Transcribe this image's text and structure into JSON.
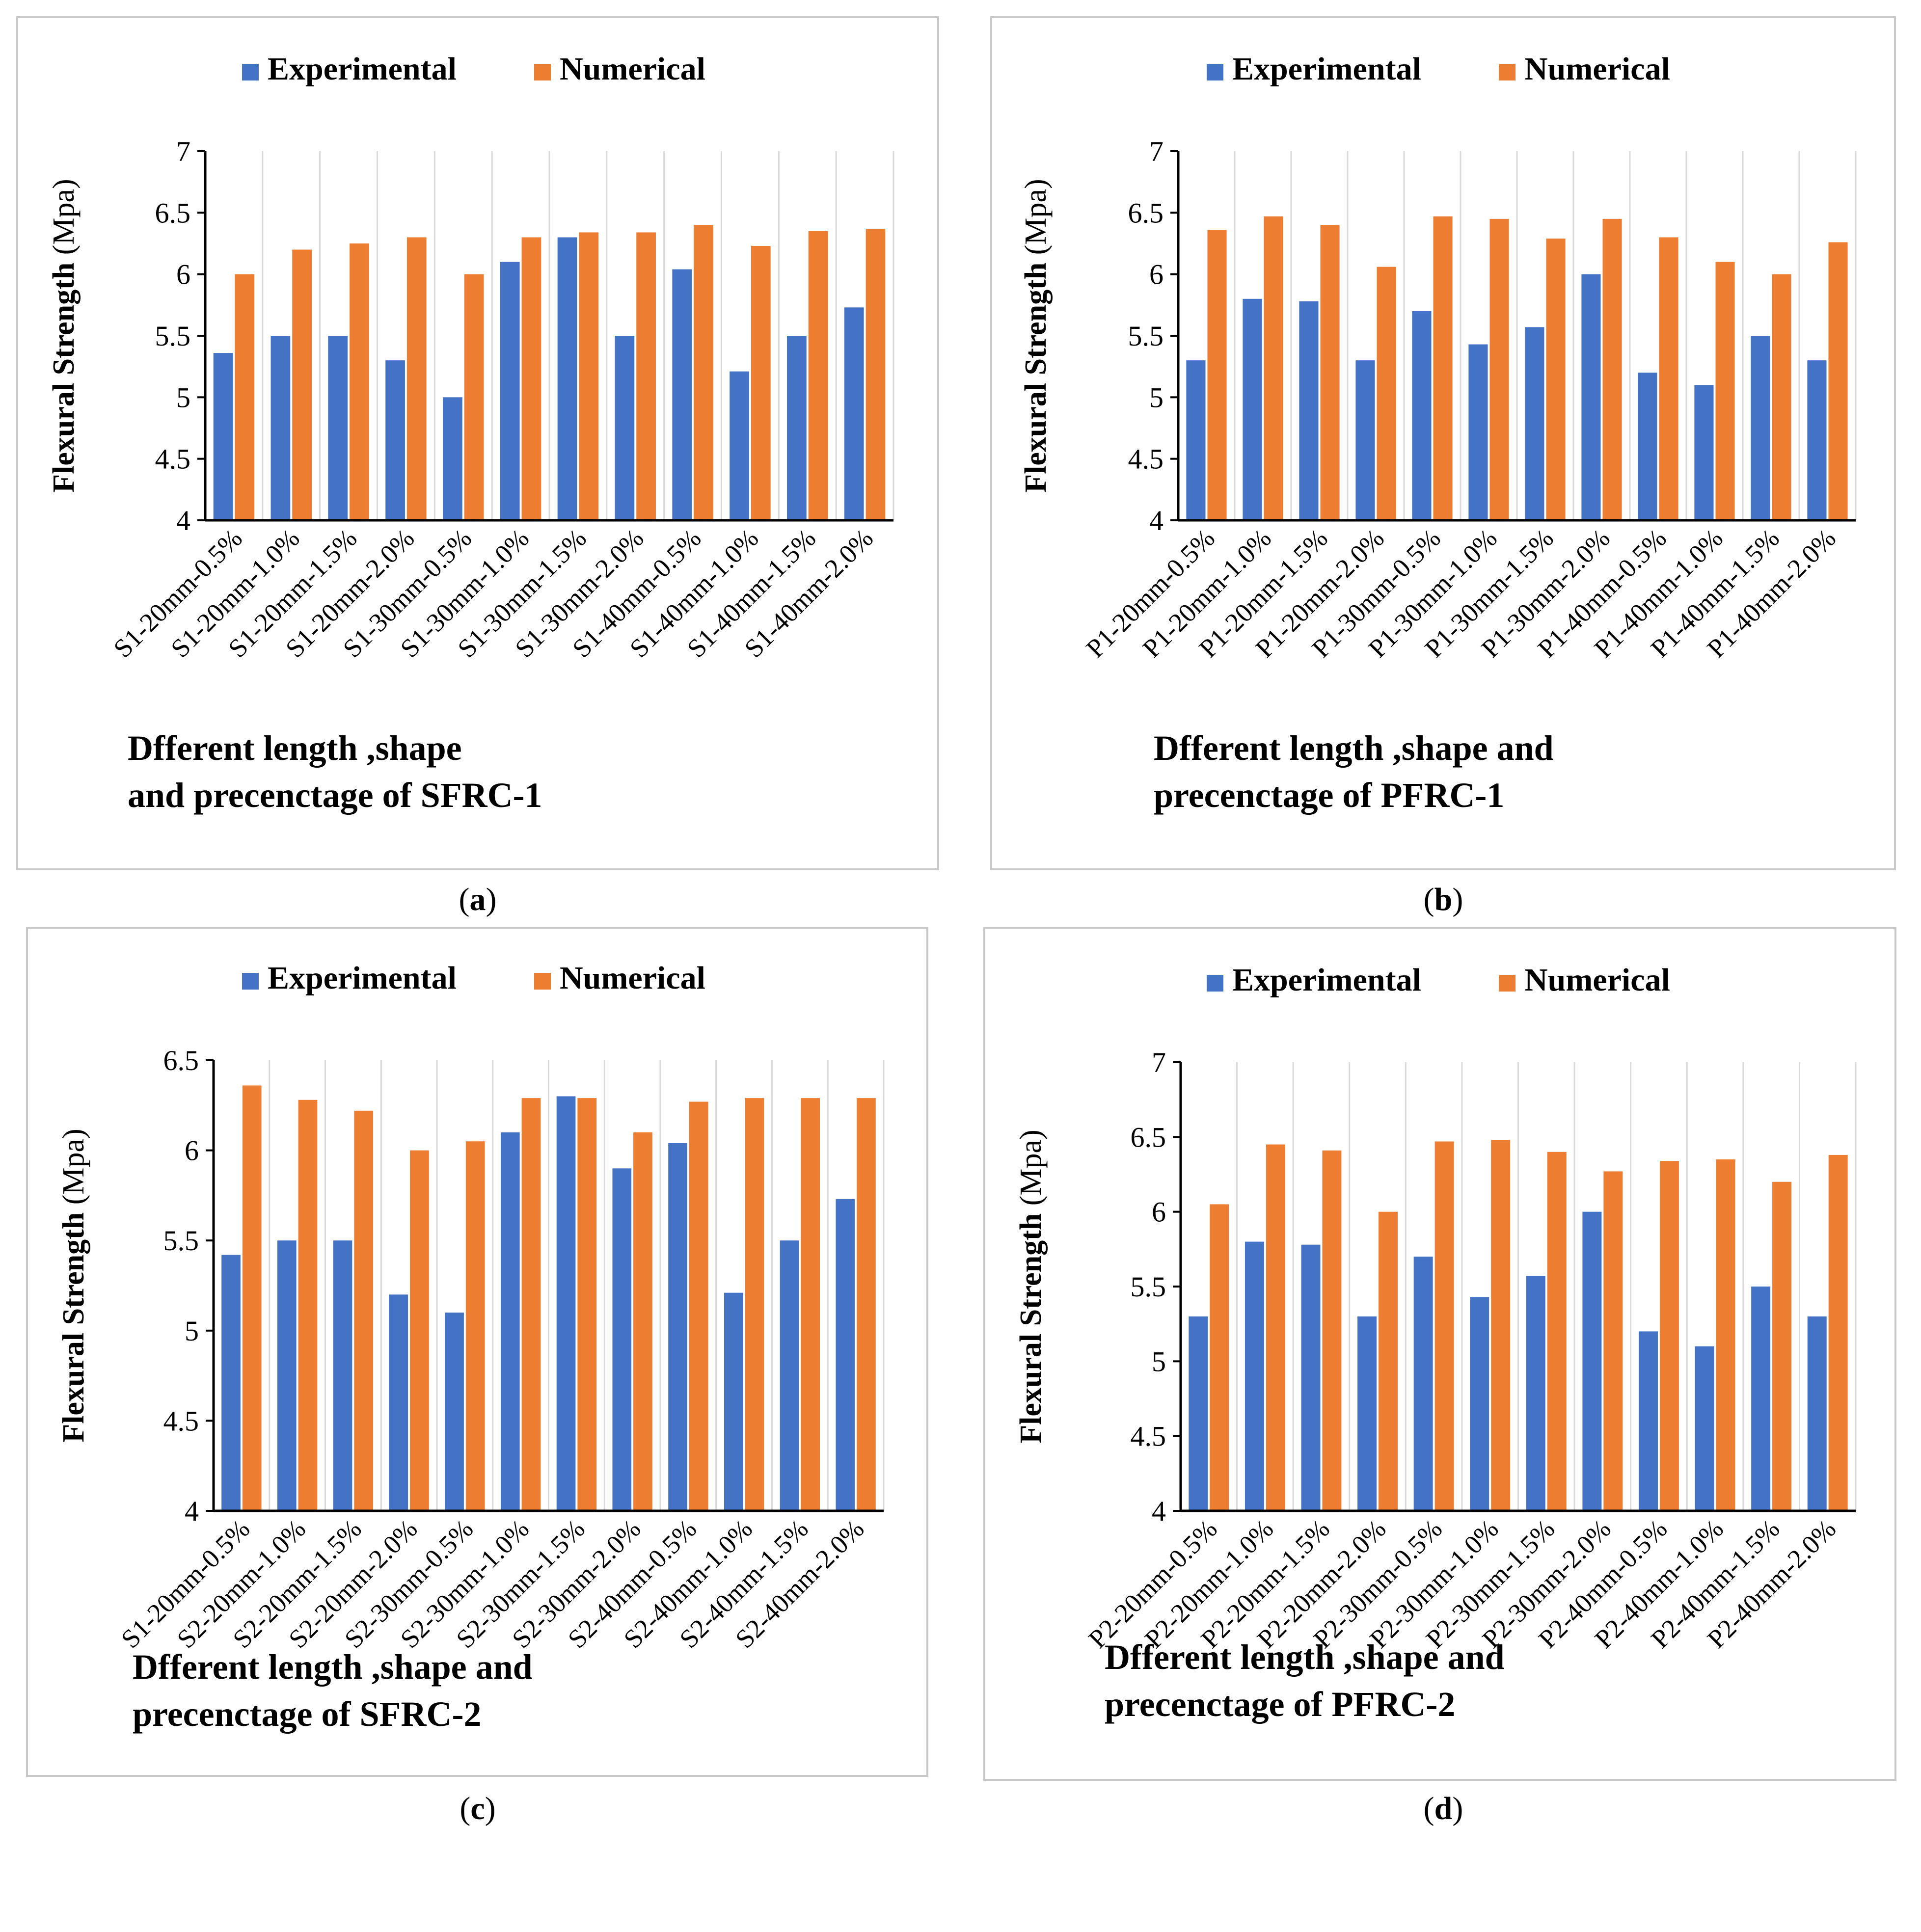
{
  "legend": {
    "experimental": "Experimental",
    "numerical": "Numerical"
  },
  "colors": {
    "experimental": "#4472C4",
    "numerical": "#ED7D31",
    "grid": "#D9D9D9",
    "axis": "#000000"
  },
  "chart_data": [
    {
      "panel": "a",
      "caption_open": "(",
      "caption_letter": "a",
      "caption_close": ")",
      "type": "bar",
      "ylabel_bold": "Flexural Strength",
      "ylabel_unit": "(Mpa)",
      "xlabel_lines": [
        "Dfferent length ,shape",
        "and precenctage of SFRC-1"
      ],
      "ylim": [
        4,
        7
      ],
      "yticks": [
        "4",
        "4.5",
        "5",
        "5.5",
        "6",
        "6.5",
        "7"
      ],
      "categories": [
        "S1-20mm-0.5%",
        "S1-20mm-1.0%",
        "S1-20mm-1.5%",
        "S1-20mm-2.0%",
        "S1-30mm-0.5%",
        "S1-30mm-1.0%",
        "S1-30mm-1.5%",
        "S1-30mm-2.0%",
        "S1-40mm-0.5%",
        "S1-40mm-1.0%",
        "S1-40mm-1.5%",
        "S1-40mm-2.0%"
      ],
      "series": [
        {
          "name": "Experimental",
          "values": [
            5.36,
            5.5,
            5.5,
            5.3,
            5.0,
            6.1,
            6.3,
            5.5,
            6.04,
            5.21,
            5.5,
            5.73
          ]
        },
        {
          "name": "Numerical",
          "values": [
            6.0,
            6.2,
            6.25,
            6.3,
            6.0,
            6.3,
            6.34,
            6.34,
            6.4,
            6.23,
            6.35,
            6.37
          ]
        }
      ]
    },
    {
      "panel": "b",
      "caption_open": "(",
      "caption_letter": "b",
      "caption_close": ")",
      "type": "bar",
      "ylabel_bold": "Flexural Strength",
      "ylabel_unit": "(Mpa)",
      "xlabel_lines": [
        "Dfferent length ,shape and",
        "precenctage of PFRC-1"
      ],
      "ylim": [
        4,
        7
      ],
      "yticks": [
        "4",
        "4.5",
        "5",
        "5.5",
        "6",
        "6.5",
        "7"
      ],
      "categories": [
        "P1-20mm-0.5%",
        "P1-20mm-1.0%",
        "P1-20mm-1.5%",
        "P1-20mm-2.0%",
        "P1-30mm-0.5%",
        "P1-30mm-1.0%",
        "P1-30mm-1.5%",
        "P1-30mm-2.0%",
        "P1-40mm-0.5%",
        "P1-40mm-1.0%",
        "P1-40mm-1.5%",
        "P1-40mm-2.0%"
      ],
      "series": [
        {
          "name": "Experimental",
          "values": [
            5.3,
            5.8,
            5.78,
            5.3,
            5.7,
            5.43,
            5.57,
            6.0,
            5.2,
            5.1,
            5.5,
            5.3
          ]
        },
        {
          "name": "Numerical",
          "values": [
            6.36,
            6.47,
            6.4,
            6.06,
            6.47,
            6.45,
            6.29,
            6.45,
            6.3,
            6.1,
            6.0,
            6.26
          ]
        }
      ]
    },
    {
      "panel": "c",
      "caption_open": "(",
      "caption_letter": "c",
      "caption_close": ")",
      "type": "bar",
      "ylabel_bold": "Flexural Strength",
      "ylabel_unit": "(Mpa)",
      "xlabel_lines": [
        "Dfferent length ,shape and",
        "precenctage of SFRC-2"
      ],
      "ylim": [
        4,
        6.5
      ],
      "yticks": [
        "4",
        "4.5",
        "5",
        "5.5",
        "6",
        "6.5"
      ],
      "categories": [
        "S1-20mm-0.5%",
        "S2-20mm-1.0%",
        "S2-20mm-1.5%",
        "S2-20mm-2.0%",
        "S2-30mm-0.5%",
        "S2-30mm-1.0%",
        "S2-30mm-1.5%",
        "S2-30mm-2.0%",
        "S2-40mm-0.5%",
        "S2-40mm-1.0%",
        "S2-40mm-1.5%",
        "S2-40mm-2.0%"
      ],
      "series": [
        {
          "name": "Experimental",
          "values": [
            5.42,
            5.5,
            5.5,
            5.2,
            5.1,
            6.1,
            6.3,
            5.9,
            6.04,
            5.21,
            5.5,
            5.73
          ]
        },
        {
          "name": "Numerical",
          "values": [
            6.36,
            6.28,
            6.22,
            6.0,
            6.05,
            6.29,
            6.29,
            6.1,
            6.27,
            6.29,
            6.29,
            6.29
          ]
        }
      ]
    },
    {
      "panel": "d",
      "caption_open": "(",
      "caption_letter": "d",
      "caption_close": ")",
      "type": "bar",
      "ylabel_bold": "Flexural Strength",
      "ylabel_unit": "(Mpa)",
      "xlabel_lines": [
        "Dfferent length ,shape and",
        "precenctage of PFRC-2"
      ],
      "ylim": [
        4,
        7
      ],
      "yticks": [
        "4",
        "4.5",
        "5",
        "5.5",
        "6",
        "6.5",
        "7"
      ],
      "categories": [
        "P2-20mm-0.5%",
        "P2-20mm-1.0%",
        "P2-20mm-1.5%",
        "P2-20mm-2.0%",
        "P2-30mm-0.5%",
        "P2-30mm-1.0%",
        "P2-30mm-1.5%",
        "P2-30mm-2.0%",
        "P2-40mm-0.5%",
        "P2-40mm-1.0%",
        "P2-40mm-1.5%",
        "P2-40mm-2.0%"
      ],
      "series": [
        {
          "name": "Experimental",
          "values": [
            5.3,
            5.8,
            5.78,
            5.3,
            5.7,
            5.43,
            5.57,
            6.0,
            5.2,
            5.1,
            5.5,
            5.3
          ]
        },
        {
          "name": "Numerical",
          "values": [
            6.05,
            6.45,
            6.41,
            6.0,
            6.47,
            6.48,
            6.4,
            6.27,
            6.34,
            6.35,
            6.2,
            6.38
          ]
        }
      ]
    }
  ]
}
